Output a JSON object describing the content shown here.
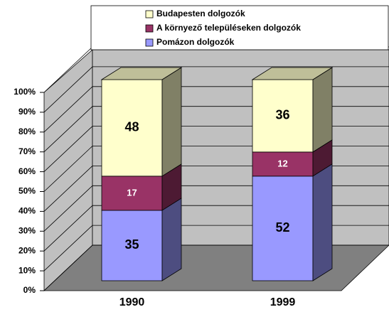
{
  "chart_data": {
    "type": "bar3d_stacked",
    "categories": [
      "1990",
      "1999"
    ],
    "series": [
      {
        "name": "Pomázon dolgozók",
        "color": "#9999ff",
        "values": [
          35,
          52
        ]
      },
      {
        "name": "A környező településeken dolgozók",
        "color": "#993366",
        "values": [
          17,
          12
        ]
      },
      {
        "name": "Budapesten dolgozók",
        "color": "#ffffcc",
        "values": [
          48,
          36
        ]
      }
    ],
    "ylim": [
      0,
      100
    ],
    "yticks": [
      {
        "value": 0,
        "label": "0%"
      },
      {
        "value": 10,
        "label": "10%"
      },
      {
        "value": 20,
        "label": "20%"
      },
      {
        "value": 30,
        "label": "30%"
      },
      {
        "value": 40,
        "label": "40%"
      },
      {
        "value": 50,
        "label": "50%"
      },
      {
        "value": 60,
        "label": "60%"
      },
      {
        "value": 70,
        "label": "70%"
      },
      {
        "value": 80,
        "label": "80%"
      },
      {
        "value": 90,
        "label": "90%"
      },
      {
        "value": 100,
        "label": "100%"
      }
    ],
    "grid": true
  }
}
